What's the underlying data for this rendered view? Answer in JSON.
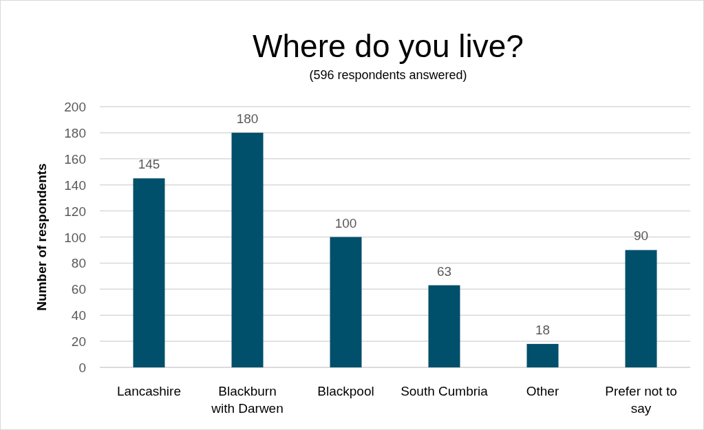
{
  "chart_data": {
    "type": "bar",
    "title": "Where do you live?",
    "subtitle": "(596 respondents answered)",
    "ylabel": "Number of respondents",
    "categories": [
      "Lancashire",
      "Blackburn with Darwen",
      "Blackpool",
      "South Cumbria",
      "Other",
      "Prefer not to say"
    ],
    "values": [
      145,
      180,
      100,
      63,
      18,
      90
    ],
    "color": "#004f6b",
    "ylim": [
      0,
      200
    ],
    "yticks": [
      0,
      20,
      40,
      60,
      80,
      100,
      120,
      140,
      160,
      180,
      200
    ],
    "grid": "y",
    "data_labels": true
  }
}
